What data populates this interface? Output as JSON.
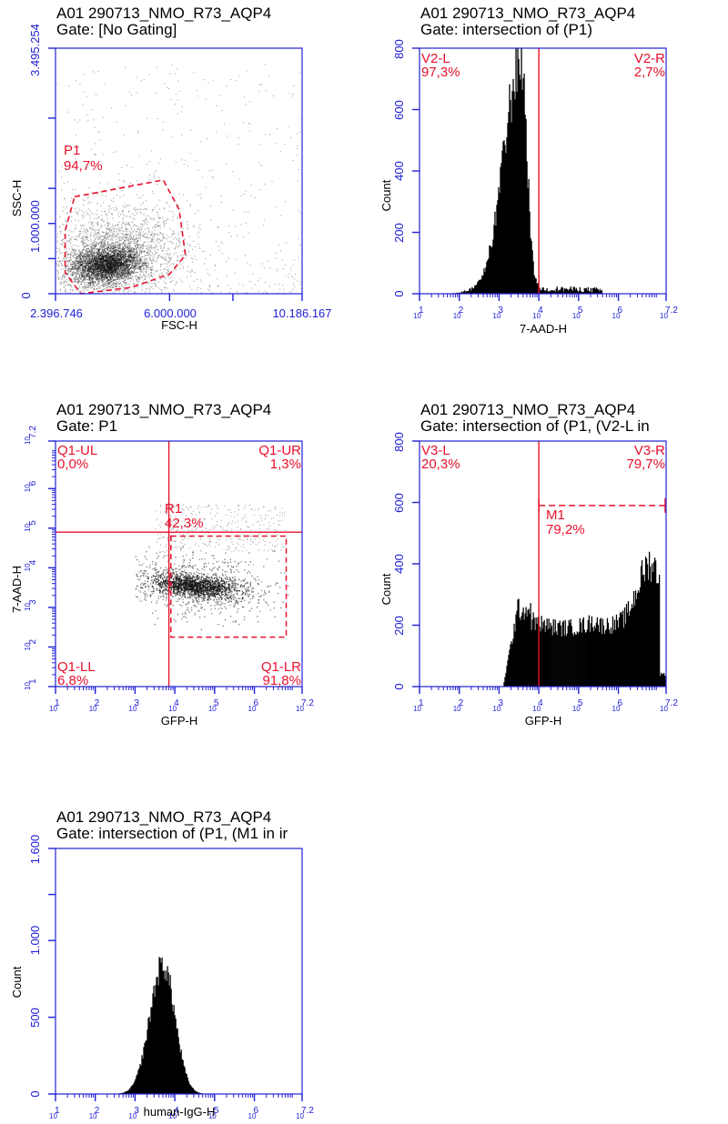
{
  "chart_data": [
    {
      "id": "p1",
      "type": "scatter",
      "title": "A01 290713_NMO_R73_AQP4",
      "subtitle": "Gate: [No Gating]",
      "xlabel": "FSC-H",
      "ylabel": "SSC-H",
      "xlim": [
        2396746,
        10186167
      ],
      "ylim": [
        0,
        3495254
      ],
      "x_scale": "linear",
      "y_scale": "linear",
      "x_tick_labels": [
        "2.396.746",
        "6.000.000",
        "10.186.167"
      ],
      "x_tick_values": [
        2396746,
        6000000,
        10186167
      ],
      "y_tick_labels": [
        "0",
        "1.000.000",
        "3.495.254"
      ],
      "y_tick_values": [
        0,
        1000000,
        3495254
      ],
      "density_center": [
        4000000,
        420000
      ],
      "gates": [
        {
          "name": "P1",
          "percent": "94,7%",
          "shape": "polygon",
          "vertices": [
            [
              3000000,
              1380000
            ],
            [
              5800000,
              1620000
            ],
            [
              6300000,
              1200000
            ],
            [
              6500000,
              550000
            ],
            [
              6000000,
              280000
            ],
            [
              4800000,
              90000
            ],
            [
              3200000,
              0
            ],
            [
              2700000,
              300000
            ],
            [
              2700000,
              900000
            ]
          ]
        }
      ]
    },
    {
      "id": "p2",
      "type": "histogram",
      "title": "A01 290713_NMO_R73_AQP4",
      "subtitle": "Gate: intersection of (P1)",
      "xlabel": "7-AAD-H",
      "ylabel": "Count",
      "x_scale": "log10",
      "xlim": [
        1,
        7.2
      ],
      "ylim": [
        0,
        800
      ],
      "x_tick_exponents": [
        "1",
        "2",
        "3",
        "4",
        "5",
        "6",
        "7.2"
      ],
      "x_tick_base": "10",
      "y_tick_labels": [
        "0",
        "200",
        "400",
        "600",
        "800"
      ],
      "peaks": [
        {
          "center": 3.55,
          "height": 790,
          "sigma_left": 0.42,
          "sigma_right": 0.15
        }
      ],
      "dividers": [
        {
          "x": 4.0
        }
      ],
      "gates": [
        {
          "name": "V2-L",
          "percent": "97,3%",
          "side": "left"
        },
        {
          "name": "V2-R",
          "percent": "2,7%",
          "side": "right"
        }
      ]
    },
    {
      "id": "p3",
      "type": "scatter",
      "title": "A01 290713_NMO_R73_AQP4",
      "subtitle": "Gate: P1",
      "xlabel": "GFP-H",
      "ylabel": "7-AAD-H",
      "x_scale": "log10",
      "y_scale": "log10",
      "xlim": [
        1,
        7.2
      ],
      "ylim": [
        1,
        7.2
      ],
      "x_tick_exponents": [
        "1",
        "2",
        "3",
        "4",
        "5",
        "6",
        "7.2"
      ],
      "y_tick_exponents": [
        "1",
        "2",
        "3",
        "4",
        "5",
        "6",
        "7.2"
      ],
      "x_tick_base": "10",
      "quadrant_split": [
        3.85,
        4.9
      ],
      "density_center": [
        4.5,
        3.55
      ],
      "gates": [
        {
          "name": "Q1-UL",
          "percent": "0,0%",
          "corner": "top-left"
        },
        {
          "name": "Q1-UR",
          "percent": "1,3%",
          "corner": "top-right"
        },
        {
          "name": "Q1-LL",
          "percent": "6,8%",
          "corner": "bottom-left"
        },
        {
          "name": "Q1-LR",
          "percent": "91,8%",
          "corner": "bottom-right"
        },
        {
          "name": "R1",
          "percent": "42,3%",
          "shape": "rectangle",
          "x_range": [
            3.9,
            6.8
          ],
          "y_range": [
            2.25,
            4.8
          ]
        }
      ]
    },
    {
      "id": "p4",
      "type": "histogram",
      "title": "A01 290713_NMO_R73_AQP4",
      "subtitle": "Gate: intersection of (P1, (V2-L in",
      "xlabel": "GFP-H",
      "ylabel": "Count",
      "x_scale": "log10",
      "xlim": [
        1,
        7.2
      ],
      "ylim": [
        0,
        800
      ],
      "x_tick_exponents": [
        "1",
        "2",
        "3",
        "4",
        "5",
        "6",
        "7.2"
      ],
      "x_tick_base": "10",
      "y_tick_labels": [
        "0",
        "200",
        "400",
        "600",
        "800"
      ],
      "shape": "broad",
      "dividers": [
        {
          "x": 4.0
        }
      ],
      "gates": [
        {
          "name": "V3-L",
          "percent": "20,3%",
          "side": "left"
        },
        {
          "name": "V3-R",
          "percent": "79,7%",
          "side": "right"
        },
        {
          "name": "M1",
          "percent": "79,2%",
          "shape": "marker",
          "x_range": [
            4.0,
            7.2
          ],
          "y": 590
        }
      ]
    },
    {
      "id": "p5",
      "type": "histogram",
      "title": "A01 290713_NMO_R73_AQP4",
      "subtitle": "Gate: intersection of (P1, (M1 in ir",
      "xlabel": "human-IgG-H",
      "ylabel": "Count",
      "x_scale": "log10",
      "xlim": [
        1,
        7.2
      ],
      "ylim": [
        0,
        1600
      ],
      "x_tick_exponents": [
        "1",
        "2",
        "3",
        "4",
        "5",
        "6",
        "7.2"
      ],
      "x_tick_base": "10",
      "y_tick_labels": [
        "0",
        "500",
        "1.000",
        "1.600"
      ],
      "y_tick_values": [
        0,
        500,
        1000,
        1600
      ],
      "peaks": [
        {
          "center": 3.7,
          "height": 850,
          "sigma_left": 0.33,
          "sigma_right": 0.3
        }
      ],
      "gates": []
    }
  ],
  "colors": {
    "axis": "#2121d6",
    "gate": "#e8112d",
    "data": "#000000"
  }
}
